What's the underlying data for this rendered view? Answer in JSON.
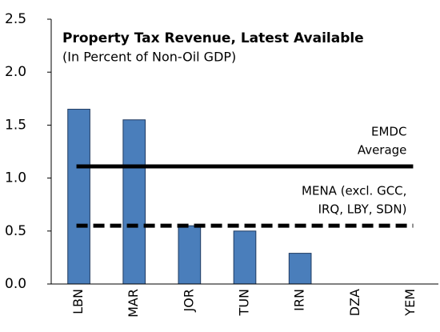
{
  "chart_data": {
    "type": "bar",
    "title": "Property Tax Revenue, Latest Available",
    "subtitle": "(In Percent of Non-Oil GDP)",
    "categories": [
      "LBN",
      "MAR",
      "JOR",
      "TUN",
      "IRN",
      "DZA",
      "YEM"
    ],
    "values": [
      1.65,
      1.55,
      0.55,
      0.5,
      0.29,
      null,
      null
    ],
    "color": "#4a7ebb",
    "ylim": [
      0,
      2.5
    ],
    "yticks": [
      {
        "value": 0,
        "label": "0.0"
      },
      0.5,
      {
        "value": 1,
        "label": "1.0"
      },
      1.5,
      {
        "value": 2,
        "label": "2.0"
      },
      2.5
    ],
    "grid": false,
    "reference_lines": [
      {
        "label_lines": [
          "EMDC",
          "Average"
        ],
        "value": 1.11,
        "style": "solid",
        "color": "#000000"
      },
      {
        "label_lines": [
          "MENA (excl. GCC,",
          "IRQ, LBY, SDN)"
        ],
        "value": 0.55,
        "style": "dashed",
        "color": "#000000"
      }
    ]
  }
}
